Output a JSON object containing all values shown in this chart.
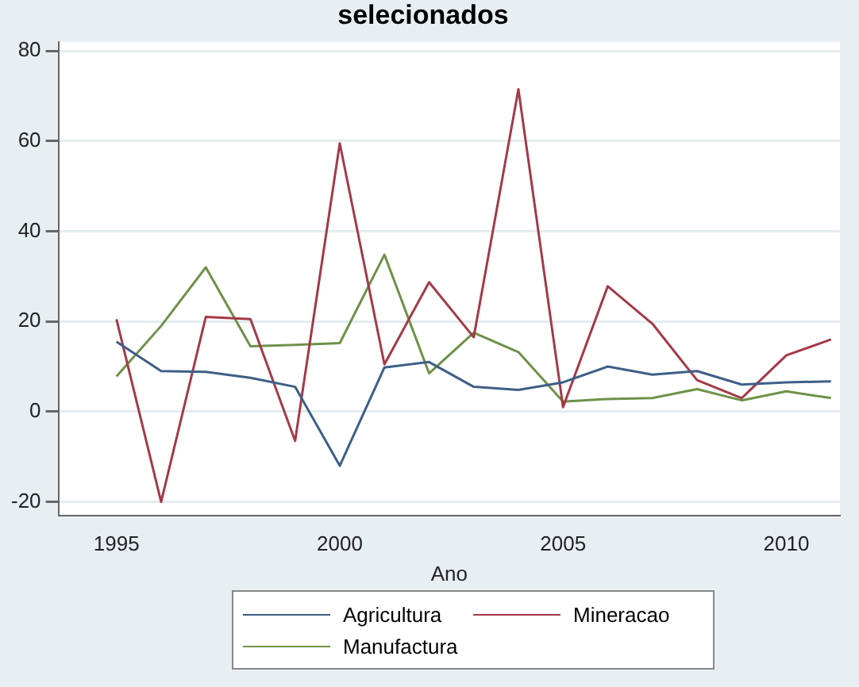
{
  "chart_data": {
    "type": "line",
    "title": "selecionados",
    "xlabel": "Ano",
    "x": [
      1995,
      1996,
      1997,
      1998,
      1999,
      2000,
      2001,
      2002,
      2003,
      2004,
      2005,
      2006,
      2007,
      2008,
      2009,
      2010,
      2011
    ],
    "series": [
      {
        "name": "Agricultura",
        "color": "#3d5f86",
        "values": [
          15.5,
          9,
          8.8,
          7.5,
          5.5,
          -12,
          9.8,
          11,
          5.5,
          4.8,
          6.5,
          10,
          8.2,
          9,
          6,
          6.5,
          6.7
        ]
      },
      {
        "name": "Mineracao",
        "color": "#a33a48",
        "values": [
          20.5,
          -20,
          21,
          20.5,
          -6.5,
          59.5,
          10.5,
          28.7,
          16.5,
          71.5,
          1,
          27.8,
          19.5,
          7,
          3,
          12.5,
          16
        ]
      },
      {
        "name": "Manufactura",
        "color": "#6e9148",
        "values": [
          7.8,
          19,
          32,
          14.5,
          14.8,
          15.2,
          34.8,
          8.5,
          17.5,
          13.2,
          2.2,
          2.8,
          3,
          5,
          2.5,
          4.5,
          3
        ]
      }
    ],
    "xlim": [
      1993.7,
      2011.2
    ],
    "xticks": [
      1995,
      2000,
      2005,
      2010
    ],
    "ylim": [
      -23,
      82
    ],
    "yticks": [
      -20,
      0,
      20,
      40,
      60,
      80
    ],
    "grid": "y",
    "legend": "bottom",
    "marker": "none",
    "line_style": "solid"
  }
}
